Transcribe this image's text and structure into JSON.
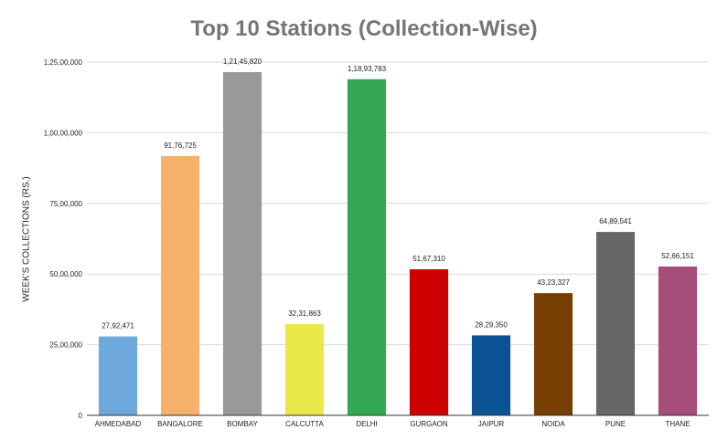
{
  "chart_data": {
    "type": "bar",
    "title": "Top 10 Stations (Collection-Wise)",
    "xlabel": "",
    "ylabel": "WEEK'S COLLECTIONS (RS.)",
    "ylim": [
      0,
      12500000
    ],
    "grid": true,
    "legend": "none",
    "categories": [
      "AHMEDABAD",
      "BANGALORE",
      "BOMBAY",
      "CALCUTTA",
      "DELHI",
      "GURGAON",
      "JAIPUR",
      "NOIDA",
      "PUNE",
      "THANE"
    ],
    "values": [
      2792471,
      9176725,
      12145820,
      3231863,
      11893783,
      5167310,
      2829350,
      4323327,
      6489541,
      5266151
    ],
    "data_labels": [
      "27,92,471",
      "91,76,725",
      "1,21,45,820",
      "32,31,863",
      "1,18,93,783",
      "51,67,310",
      "28,29,350",
      "43,23,327",
      "64,89,541",
      "52,66,151"
    ],
    "y_ticks": [
      0,
      2500000,
      5000000,
      7500000,
      10000000,
      12500000
    ],
    "y_tick_labels": [
      "0",
      "25,00,000",
      "50,00,000",
      "75,00,000",
      "1,00,00,000",
      "1,25,00,000"
    ],
    "colors": [
      "#6fa8dc",
      "#f6b26b",
      "#999999",
      "#e8e84a",
      "#34a853",
      "#cc0000",
      "#0b5394",
      "#783f04",
      "#666666",
      "#a64d79"
    ]
  }
}
